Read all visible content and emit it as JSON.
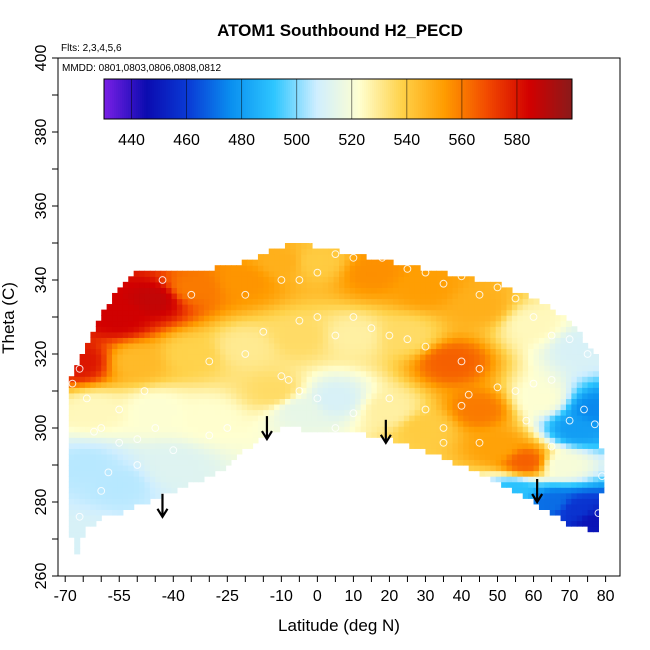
{
  "chart_data": {
    "type": "heatmap",
    "title": "ATOM1 Southbound H2_PECD",
    "flights_note": "Flts: 2,3,4,5,6",
    "dates_note": "MMDD: 0801,0803,0806,0808,0812",
    "xlabel": "Latitude (deg N)",
    "ylabel": "Theta (C)",
    "xlim": [
      -70,
      80
    ],
    "ylim": [
      260,
      400
    ],
    "x_ticks": [
      -70,
      -55,
      -40,
      -25,
      -10,
      0,
      10,
      20,
      30,
      40,
      50,
      60,
      70,
      80
    ],
    "y_ticks": [
      260,
      280,
      300,
      320,
      340,
      360,
      380,
      400
    ],
    "colorbar": {
      "min": 430,
      "max": 600,
      "ticks": [
        440,
        460,
        480,
        500,
        520,
        540,
        560,
        580
      ],
      "colors": [
        "#7a1fe6",
        "#0b0bb0",
        "#0a3cd6",
        "#0a90f0",
        "#2ec6ff",
        "#cfeeff",
        "#ffffd0",
        "#ffd24a",
        "#ff9c00",
        "#f24a00",
        "#d20000",
        "#8a1a1a"
      ]
    },
    "boundary": {
      "top": [
        [
          -69,
          313
        ],
        [
          -65,
          321
        ],
        [
          -60,
          331
        ],
        [
          -55,
          338
        ],
        [
          -50,
          342
        ],
        [
          -45,
          343
        ],
        [
          -40,
          342
        ],
        [
          -30,
          343
        ],
        [
          -20,
          345
        ],
        [
          -15,
          347
        ],
        [
          -10,
          349
        ],
        [
          -5,
          350
        ],
        [
          0,
          349
        ],
        [
          5,
          348
        ],
        [
          10,
          347
        ],
        [
          20,
          345
        ],
        [
          30,
          343
        ],
        [
          40,
          341
        ],
        [
          50,
          339
        ],
        [
          60,
          335
        ],
        [
          70,
          329
        ],
        [
          78,
          319
        ],
        [
          79,
          286
        ]
      ],
      "bottom": [
        [
          79,
          286
        ],
        [
          78,
          272
        ],
        [
          70,
          274
        ],
        [
          60,
          280
        ],
        [
          50,
          285
        ],
        [
          40,
          290
        ],
        [
          30,
          294
        ],
        [
          20,
          297
        ],
        [
          10,
          299
        ],
        [
          0,
          299
        ],
        [
          -5,
          300
        ],
        [
          -10,
          300
        ],
        [
          -15,
          298
        ],
        [
          -20,
          294
        ],
        [
          -25,
          290
        ],
        [
          -30,
          287
        ],
        [
          -40,
          283
        ],
        [
          -50,
          279
        ],
        [
          -55,
          277
        ],
        [
          -60,
          276
        ],
        [
          -65,
          272
        ],
        [
          -67,
          266
        ],
        [
          -69,
          285
        ],
        [
          -69,
          313
        ]
      ]
    },
    "field": [
      {
        "lat": -66,
        "theta": 318,
        "value": 580
      },
      {
        "lat": -55,
        "theta": 330,
        "value": 585
      },
      {
        "lat": -45,
        "theta": 335,
        "value": 588
      },
      {
        "lat": -35,
        "theta": 338,
        "value": 560
      },
      {
        "lat": -20,
        "theta": 340,
        "value": 555
      },
      {
        "lat": -10,
        "theta": 345,
        "value": 548
      },
      {
        "lat": 0,
        "theta": 345,
        "value": 540
      },
      {
        "lat": 15,
        "theta": 342,
        "value": 556
      },
      {
        "lat": 30,
        "theta": 338,
        "value": 553
      },
      {
        "lat": 45,
        "theta": 333,
        "value": 548
      },
      {
        "lat": 60,
        "theta": 328,
        "value": 525
      },
      {
        "lat": 73,
        "theta": 322,
        "value": 510
      },
      {
        "lat": -50,
        "theta": 318,
        "value": 545
      },
      {
        "lat": -35,
        "theta": 320,
        "value": 538
      },
      {
        "lat": -20,
        "theta": 322,
        "value": 530
      },
      {
        "lat": -5,
        "theta": 325,
        "value": 535
      },
      {
        "lat": 10,
        "theta": 325,
        "value": 528
      },
      {
        "lat": 25,
        "theta": 325,
        "value": 535
      },
      {
        "lat": 37,
        "theta": 318,
        "value": 565
      },
      {
        "lat": 45,
        "theta": 305,
        "value": 560
      },
      {
        "lat": -62,
        "theta": 305,
        "value": 525
      },
      {
        "lat": -45,
        "theta": 305,
        "value": 522
      },
      {
        "lat": -30,
        "theta": 303,
        "value": 523
      },
      {
        "lat": -12,
        "theta": 310,
        "value": 535
      },
      {
        "lat": 5,
        "theta": 308,
        "value": 510
      },
      {
        "lat": 20,
        "theta": 305,
        "value": 528
      },
      {
        "lat": 30,
        "theta": 300,
        "value": 540
      },
      {
        "lat": 50,
        "theta": 295,
        "value": 552
      },
      {
        "lat": 58,
        "theta": 291,
        "value": 565
      },
      {
        "lat": 62,
        "theta": 308,
        "value": 522
      },
      {
        "lat": -64,
        "theta": 290,
        "value": 505
      },
      {
        "lat": -55,
        "theta": 285,
        "value": 505
      },
      {
        "lat": -40,
        "theta": 290,
        "value": 512
      },
      {
        "lat": 55,
        "theta": 283,
        "value": 490
      },
      {
        "lat": 68,
        "theta": 290,
        "value": 520
      },
      {
        "lat": 72,
        "theta": 300,
        "value": 480
      },
      {
        "lat": 77,
        "theta": 305,
        "value": 475
      },
      {
        "lat": 72,
        "theta": 278,
        "value": 458
      },
      {
        "lat": 77,
        "theta": 275,
        "value": 448
      },
      {
        "lat": 65,
        "theta": 280,
        "value": 470
      },
      {
        "lat": -67,
        "theta": 270,
        "value": 510
      },
      {
        "lat": -5,
        "theta": 305,
        "value": 515
      }
    ],
    "arrows": [
      {
        "lat": -43,
        "theta_tip": 276
      },
      {
        "lat": -14,
        "theta_tip": 297
      },
      {
        "lat": 19,
        "theta_tip": 296
      },
      {
        "lat": 61,
        "theta_tip": 280
      }
    ],
    "observations": [
      [
        -66,
        316
      ],
      [
        -68,
        312
      ],
      [
        -64,
        308
      ],
      [
        -60,
        300
      ],
      [
        -55,
        296
      ],
      [
        -50,
        297
      ],
      [
        -62,
        299
      ],
      [
        -58,
        288
      ],
      [
        -45,
        300
      ],
      [
        -40,
        294
      ],
      [
        -30,
        298
      ],
      [
        -25,
        300
      ],
      [
        -35,
        336
      ],
      [
        -43,
        340
      ],
      [
        -20,
        336
      ],
      [
        -10,
        340
      ],
      [
        -5,
        340
      ],
      [
        0,
        342
      ],
      [
        5,
        347
      ],
      [
        -2,
        351
      ],
      [
        10,
        346
      ],
      [
        18,
        346
      ],
      [
        25,
        343
      ],
      [
        30,
        342
      ],
      [
        35,
        339
      ],
      [
        40,
        341
      ],
      [
        45,
        336
      ],
      [
        50,
        338
      ],
      [
        55,
        335
      ],
      [
        60,
        330
      ],
      [
        65,
        325
      ],
      [
        70,
        324
      ],
      [
        75,
        320
      ],
      [
        -15,
        326
      ],
      [
        -5,
        329
      ],
      [
        0,
        330
      ],
      [
        5,
        325
      ],
      [
        10,
        330
      ],
      [
        15,
        327
      ],
      [
        20,
        325
      ],
      [
        25,
        324
      ],
      [
        30,
        322
      ],
      [
        40,
        318
      ],
      [
        45,
        316
      ],
      [
        50,
        311
      ],
      [
        55,
        310
      ],
      [
        60,
        312
      ],
      [
        65,
        313
      ],
      [
        -30,
        318
      ],
      [
        -20,
        320
      ],
      [
        -10,
        314
      ],
      [
        -5,
        310
      ],
      [
        0,
        308
      ],
      [
        10,
        304
      ],
      [
        20,
        308
      ],
      [
        30,
        305
      ],
      [
        35,
        300
      ],
      [
        45,
        296
      ],
      [
        40,
        306
      ],
      [
        58,
        302
      ],
      [
        65,
        295
      ],
      [
        70,
        302
      ],
      [
        74,
        305
      ],
      [
        77,
        301
      ],
      [
        79,
        287
      ],
      [
        78,
        277
      ],
      [
        -66,
        276
      ],
      [
        -60,
        283
      ],
      [
        -50,
        290
      ],
      [
        -55,
        305
      ],
      [
        -48,
        310
      ],
      [
        35,
        296
      ],
      [
        42,
        309
      ],
      [
        5,
        300
      ],
      [
        -8,
        313
      ]
    ]
  }
}
